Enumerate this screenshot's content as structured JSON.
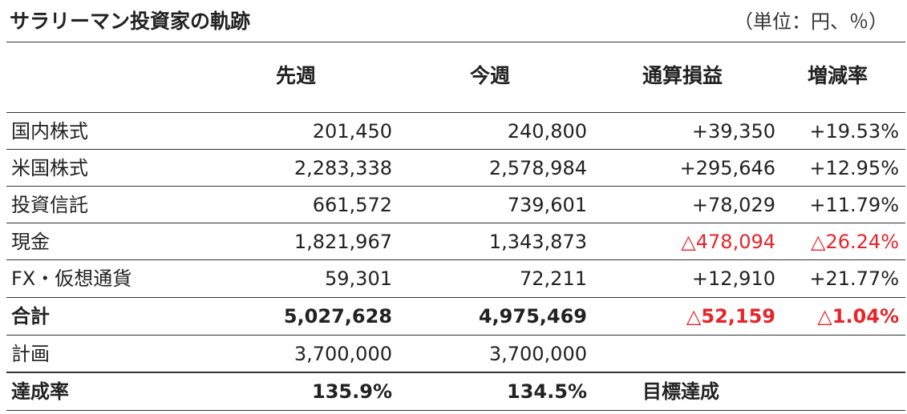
{
  "title": "サラリーマン投資家の軌跡",
  "unit": "（単位：円、％）",
  "headers": {
    "prev": "先週",
    "curr": "今週",
    "pl": "通算損益",
    "rate": "増減率"
  },
  "rows": [
    {
      "label": "国内株式",
      "prev": "201,450",
      "curr": "240,800",
      "pl": "+39,350",
      "rate": "+19.53%",
      "negative": false
    },
    {
      "label": "米国株式",
      "prev": "2,283,338",
      "curr": "2,578,984",
      "pl": "+295,646",
      "rate": "+12.95%",
      "negative": false
    },
    {
      "label": "投資信託",
      "prev": "661,572",
      "curr": "739,601",
      "pl": "+78,029",
      "rate": "+11.79%",
      "negative": false
    },
    {
      "label": "現金",
      "prev": "1,821,967",
      "curr": "1,343,873",
      "pl": "△478,094",
      "rate": "△26.24%",
      "negative": true
    },
    {
      "label": "FX・仮想通貨",
      "prev": "59,301",
      "curr": "72,211",
      "pl": "+12,910",
      "rate": "+21.77%",
      "negative": false
    }
  ],
  "total": {
    "label": "合計",
    "prev": "5,027,628",
    "curr": "4,975,469",
    "pl": "△52,159",
    "rate": "△1.04%",
    "negative": true
  },
  "plan": {
    "label": "計画",
    "prev": "3,700,000",
    "curr": "3,700,000"
  },
  "achievement": {
    "label": "達成率",
    "prev": "135.9%",
    "curr": "134.5%",
    "note": "目標達成"
  },
  "colors": {
    "negative": "#e8242a",
    "text": "#222222",
    "rule": "#333333"
  }
}
